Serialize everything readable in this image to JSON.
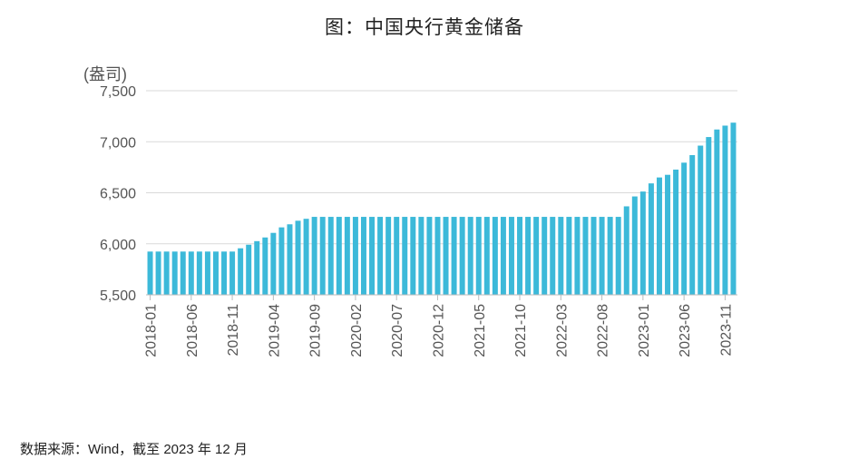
{
  "colors": {
    "bar": "#3cb9d9",
    "grid": "#d9d9d9",
    "axis": "#bbbbbb"
  },
  "source_text": "数据来源：Wind，截至 2023 年 12 月",
  "chart_data": {
    "type": "bar",
    "title": "图：中国央行黄金储备",
    "ylabel": "(盎司)",
    "xlabel": "",
    "ylim": [
      5500,
      7500
    ],
    "yticks": [
      5500,
      6000,
      6500,
      7000,
      7500
    ],
    "ytick_labels": [
      "5,500",
      "6,000",
      "6,500",
      "7,000",
      "7,500"
    ],
    "xtick_labels": [
      "2018-01",
      "2018-06",
      "2018-11",
      "2019-04",
      "2019-09",
      "2020-02",
      "2020-07",
      "2020-12",
      "2021-05",
      "2021-10",
      "2022-03",
      "2022-08",
      "2023-01",
      "2023-06",
      "2023-11"
    ],
    "categories": [
      "2018-01",
      "2018-02",
      "2018-03",
      "2018-04",
      "2018-05",
      "2018-06",
      "2018-07",
      "2018-08",
      "2018-09",
      "2018-10",
      "2018-11",
      "2018-12",
      "2019-01",
      "2019-02",
      "2019-03",
      "2019-04",
      "2019-05",
      "2019-06",
      "2019-07",
      "2019-08",
      "2019-09",
      "2019-10",
      "2019-11",
      "2019-12",
      "2020-01",
      "2020-02",
      "2020-03",
      "2020-04",
      "2020-05",
      "2020-06",
      "2020-07",
      "2020-08",
      "2020-09",
      "2020-10",
      "2020-11",
      "2020-12",
      "2021-01",
      "2021-02",
      "2021-03",
      "2021-04",
      "2021-05",
      "2021-06",
      "2021-07",
      "2021-08",
      "2021-09",
      "2021-10",
      "2021-11",
      "2021-12",
      "2022-01",
      "2022-02",
      "2022-03",
      "2022-04",
      "2022-05",
      "2022-06",
      "2022-07",
      "2022-08",
      "2022-09",
      "2022-10",
      "2022-11",
      "2022-12",
      "2023-01",
      "2023-02",
      "2023-03",
      "2023-04",
      "2023-05",
      "2023-06",
      "2023-07",
      "2023-08",
      "2023-09",
      "2023-10",
      "2023-11",
      "2023-12"
    ],
    "values": [
      5924,
      5924,
      5924,
      5924,
      5924,
      5924,
      5924,
      5924,
      5924,
      5924,
      5924,
      5956,
      5991,
      6026,
      6062,
      6107,
      6161,
      6191,
      6226,
      6245,
      6264,
      6264,
      6264,
      6264,
      6264,
      6264,
      6264,
      6264,
      6264,
      6264,
      6264,
      6264,
      6264,
      6264,
      6264,
      6264,
      6264,
      6264,
      6264,
      6264,
      6264,
      6264,
      6264,
      6264,
      6264,
      6264,
      6264,
      6264,
      6264,
      6264,
      6264,
      6264,
      6264,
      6264,
      6264,
      6264,
      6264,
      6264,
      6367,
      6464,
      6512,
      6592,
      6650,
      6676,
      6727,
      6795,
      6869,
      6962,
      7046,
      7120,
      7158,
      7187
    ],
    "legend": "none",
    "grid": "horizontal"
  }
}
